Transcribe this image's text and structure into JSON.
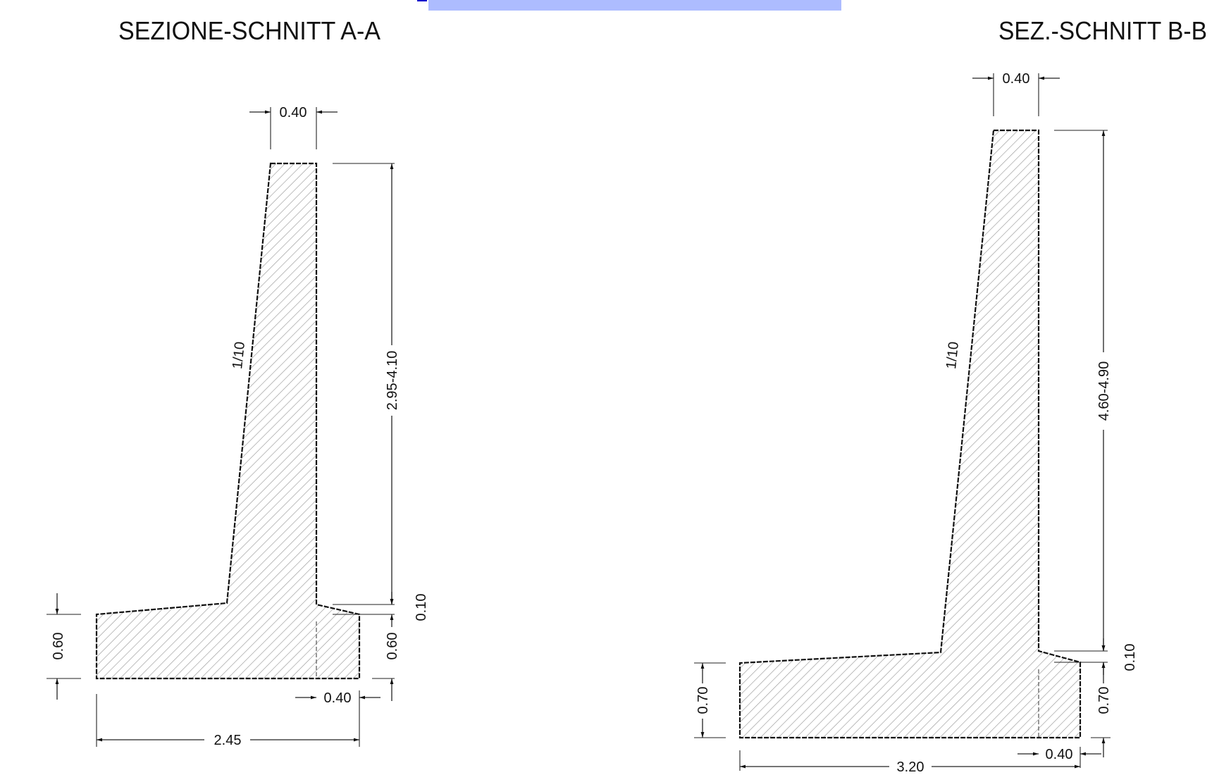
{
  "header_bar": {
    "color": "#adbcff"
  },
  "section_a": {
    "title": "SEZIONE-SCHNITT A-A",
    "top_width": "0.40",
    "stem_height": "2.95-4.10",
    "batter": "1/10",
    "step": "0.10",
    "toe_thickness": "0.60",
    "heel_thickness": "0.60",
    "heel_width": "0.40",
    "base_width": "2.45"
  },
  "section_b": {
    "title": "SEZ.-SCHNITT B-B",
    "top_width": "0.40",
    "stem_height": "4.60-4.90",
    "batter": "1/10",
    "step": "0.10",
    "toe_thickness": "0.70",
    "heel_thickness": "0.70",
    "heel_width": "0.40",
    "base_width": "3.20"
  }
}
